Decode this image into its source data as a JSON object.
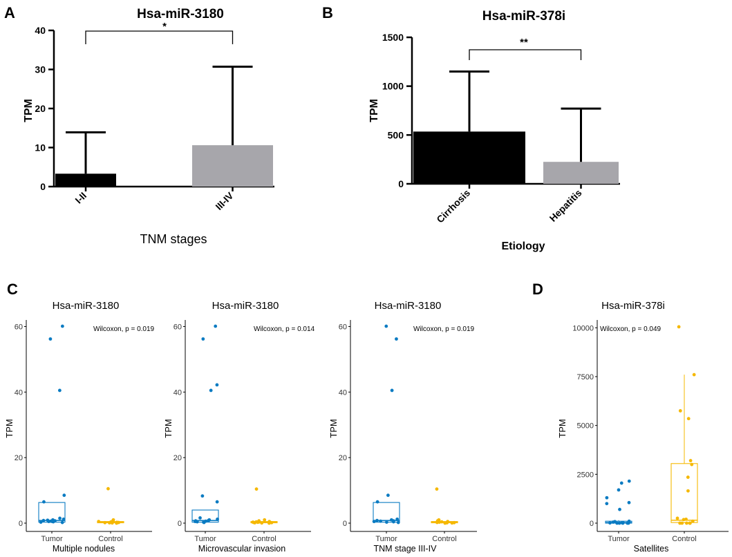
{
  "panel_letters": {
    "a": "A",
    "b": "B",
    "c": "C",
    "d": "D"
  },
  "colors": {
    "black_bar": "#000000",
    "gray_bar": "#a7a6ab",
    "tumor": "#0a7bc2",
    "control": "#f5b800"
  },
  "chart_data": [
    {
      "id": "A",
      "type": "bar",
      "title": "Hsa-miR-3180",
      "categories": [
        "I-II",
        "III-IV"
      ],
      "values": [
        3.3,
        10.6
      ],
      "error_upper": [
        13.9,
        30.7
      ],
      "ylabel": "TPM",
      "xlabel": "TNM stages",
      "ylim": [
        0,
        40
      ],
      "yticks": [
        "0",
        "10",
        "20",
        "30",
        "40"
      ],
      "significance": "*"
    },
    {
      "id": "B",
      "type": "bar",
      "title": "Hsa-miR-378i",
      "categories": [
        "Cirrhosis",
        "Hepatitis"
      ],
      "values": [
        535,
        225
      ],
      "error_upper": [
        1150,
        770
      ],
      "ylabel": "TPM",
      "xlabel": "Etiology",
      "ylim": [
        0,
        1500
      ],
      "yticks": [
        "0",
        "500",
        "1000",
        "1500"
      ],
      "significance": "**"
    },
    {
      "id": "C1",
      "type": "box",
      "title": "Hsa-miR-3180",
      "ylabel": "TPM",
      "xlabel": "Multiple nodules",
      "categories": [
        "Tumor",
        "Control"
      ],
      "annotation": "Wilcoxon, p = 0.019",
      "ylim": [
        0,
        62
      ],
      "yticks": [
        "0",
        "20",
        "40",
        "60"
      ],
      "boxes": [
        {
          "q1": 0.3,
          "median": 0.8,
          "q3": 6.3,
          "whisker_low": 0,
          "whisker_high": 6.3
        },
        {
          "q1": 0.1,
          "median": 0.3,
          "q3": 0.5,
          "whisker_low": 0,
          "whisker_high": 0.6
        }
      ],
      "points": [
        [
          0.2,
          0.3,
          0.4,
          0.5,
          0.6,
          0.7,
          0.8,
          0.9,
          1.0,
          1.2,
          1.5,
          6.5,
          8.5,
          40.5,
          56.2,
          60.1
        ],
        [
          0.0,
          0.05,
          0.1,
          0.15,
          0.2,
          0.25,
          0.3,
          0.35,
          0.4,
          0.5,
          0.7,
          1.0,
          10.5
        ]
      ]
    },
    {
      "id": "C2",
      "type": "box",
      "title": "Hsa-miR-3180",
      "ylabel": "TPM",
      "xlabel": "Microvascular invasion",
      "categories": [
        "Tumor",
        "Control"
      ],
      "annotation": "Wilcoxon, p = 0.014",
      "ylim": [
        0,
        62
      ],
      "yticks": [
        "0",
        "20",
        "40",
        "60"
      ],
      "boxes": [
        {
          "q1": 0.3,
          "median": 0.8,
          "q3": 4.0,
          "whisker_low": 0,
          "whisker_high": 4.0
        },
        {
          "q1": 0.1,
          "median": 0.3,
          "q3": 0.5,
          "whisker_low": 0,
          "whisker_high": 0.6
        }
      ],
      "points": [
        [
          0.2,
          0.3,
          0.4,
          0.5,
          0.6,
          0.7,
          0.8,
          1.0,
          1.2,
          1.6,
          6.5,
          8.3,
          40.5,
          42.2,
          56.2,
          60.1
        ],
        [
          0.0,
          0.05,
          0.1,
          0.15,
          0.2,
          0.25,
          0.3,
          0.35,
          0.4,
          0.5,
          0.7,
          1.0,
          10.4
        ]
      ]
    },
    {
      "id": "C3",
      "type": "box",
      "title": "Hsa-miR-3180",
      "ylabel": "TPM",
      "xlabel": "TNM stage III-IV",
      "categories": [
        "Tumor",
        "Control"
      ],
      "annotation": "Wilcoxon, p = 0.019",
      "ylim": [
        0,
        62
      ],
      "yticks": [
        "0",
        "20",
        "40",
        "60"
      ],
      "boxes": [
        {
          "q1": 0.3,
          "median": 0.8,
          "q3": 6.3,
          "whisker_low": 0,
          "whisker_high": 6.3
        },
        {
          "q1": 0.1,
          "median": 0.3,
          "q3": 0.5,
          "whisker_low": 0,
          "whisker_high": 0.6
        }
      ],
      "points": [
        [
          0.2,
          0.3,
          0.4,
          0.5,
          0.6,
          0.7,
          0.8,
          1.0,
          1.2,
          6.5,
          8.5,
          40.5,
          56.2,
          60.1
        ],
        [
          0.0,
          0.05,
          0.1,
          0.15,
          0.2,
          0.3,
          0.4,
          0.5,
          0.7,
          1.0,
          10.4
        ]
      ]
    },
    {
      "id": "D",
      "type": "box",
      "title": "Hsa-miR-378i",
      "ylabel": "TPM",
      "xlabel": "Satellites",
      "categories": [
        "Tumor",
        "Control"
      ],
      "annotation": "Wilcoxon, p = 0.049",
      "ylim": [
        0,
        10400
      ],
      "yticks": [
        "0",
        "2500",
        "5000",
        "7500",
        "10000"
      ],
      "boxes": [
        {
          "q1": 0,
          "median": 30,
          "q3": 100,
          "whisker_low": 0,
          "whisker_high": 150
        },
        {
          "q1": 30,
          "median": 150,
          "q3": 3050,
          "whisker_low": 0,
          "whisker_high": 7600
        }
      ],
      "points": [
        [
          0,
          0,
          0,
          0,
          0,
          10,
          20,
          30,
          50,
          80,
          100,
          700,
          1000,
          1050,
          1300,
          1700,
          2050,
          2150
        ],
        [
          0,
          0,
          0,
          0,
          0,
          100,
          180,
          200,
          250,
          1650,
          2350,
          3000,
          3200,
          5350,
          5750,
          7600,
          10050
        ]
      ]
    }
  ]
}
